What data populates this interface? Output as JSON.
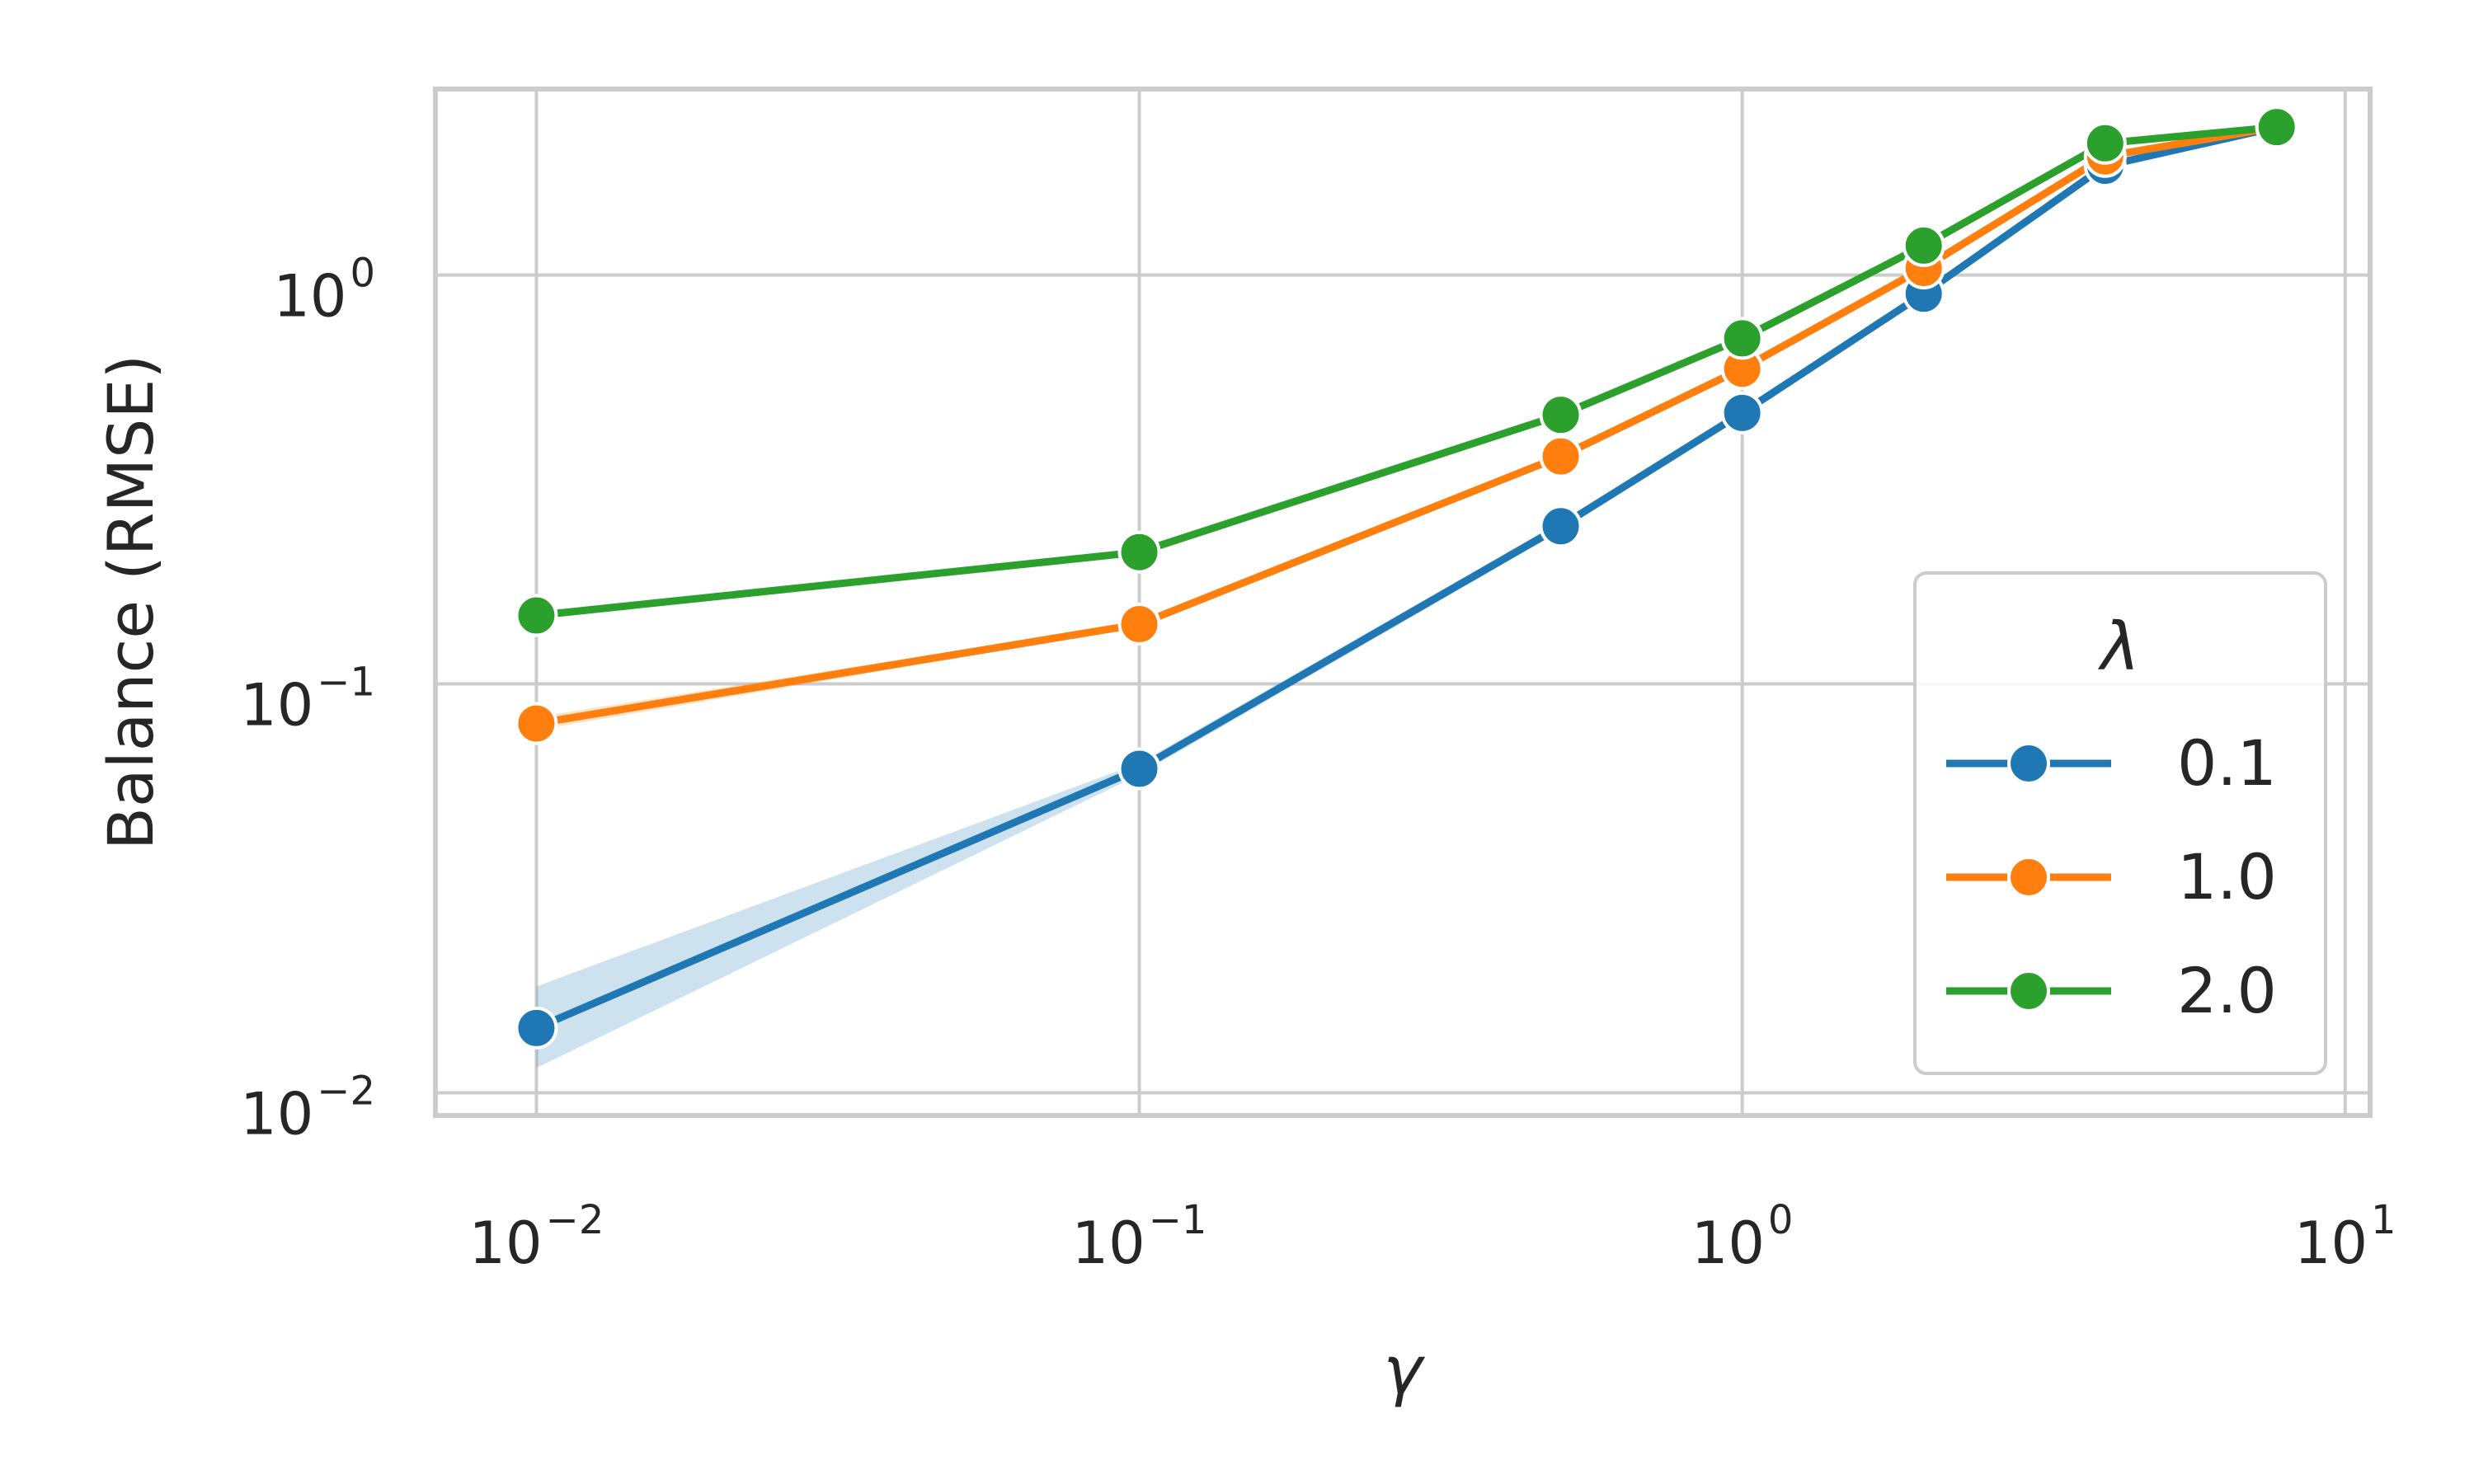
{
  "chart_data": {
    "type": "line",
    "title": "",
    "xlabel": "γ",
    "ylabel": "Balance (RMSE)",
    "x_scale": "log",
    "y_scale": "log",
    "xlim": [
      0.0068,
      11
    ],
    "ylim": [
      0.0088,
      2.85
    ],
    "x_ticks": [
      {
        "value": 0.01,
        "base": "10",
        "exp": "−2"
      },
      {
        "value": 0.1,
        "base": "10",
        "exp": "−1"
      },
      {
        "value": 1,
        "base": "10",
        "exp": "0"
      },
      {
        "value": 10,
        "base": "10",
        "exp": "1"
      }
    ],
    "y_ticks": [
      {
        "value": 0.01,
        "base": "10",
        "exp": "−2"
      },
      {
        "value": 0.1,
        "base": "10",
        "exp": "−1"
      },
      {
        "value": 1,
        "base": "10",
        "exp": "0"
      }
    ],
    "grid": true,
    "legend": {
      "title": "λ",
      "position": "lower-right"
    },
    "series": [
      {
        "name": "0.1",
        "color": "#1f77b4",
        "x": [
          0.01,
          0.1,
          0.5,
          1,
          2,
          4,
          7.7
        ],
        "y": [
          0.0144,
          0.062,
          0.243,
          0.46,
          0.9,
          1.85,
          2.3
        ],
        "y_lower": [
          0.0115,
          0.06,
          0.237,
          0.45,
          0.89,
          1.83,
          2.28
        ],
        "y_upper": [
          0.0182,
          0.064,
          0.249,
          0.47,
          0.91,
          1.87,
          2.32
        ]
      },
      {
        "name": "1.0",
        "color": "#ff7f0e",
        "x": [
          0.01,
          0.1,
          0.5,
          1,
          2,
          4,
          7.7
        ],
        "y": [
          0.08,
          0.14,
          0.36,
          0.59,
          1.04,
          1.95,
          2.3
        ],
        "y_lower": [
          0.077,
          0.138,
          0.355,
          0.585,
          1.035,
          1.94,
          2.29
        ],
        "y_upper": [
          0.083,
          0.142,
          0.365,
          0.595,
          1.045,
          1.96,
          2.31
        ]
      },
      {
        "name": "2.0",
        "color": "#2ca02c",
        "x": [
          0.01,
          0.1,
          0.5,
          1,
          2,
          4,
          7.7
        ],
        "y": [
          0.147,
          0.21,
          0.455,
          0.7,
          1.18,
          2.1,
          2.3
        ],
        "y_lower": [
          0.144,
          0.208,
          0.45,
          0.695,
          1.175,
          2.09,
          2.29
        ],
        "y_upper": [
          0.15,
          0.212,
          0.46,
          0.705,
          1.185,
          2.11,
          2.31
        ]
      }
    ]
  }
}
